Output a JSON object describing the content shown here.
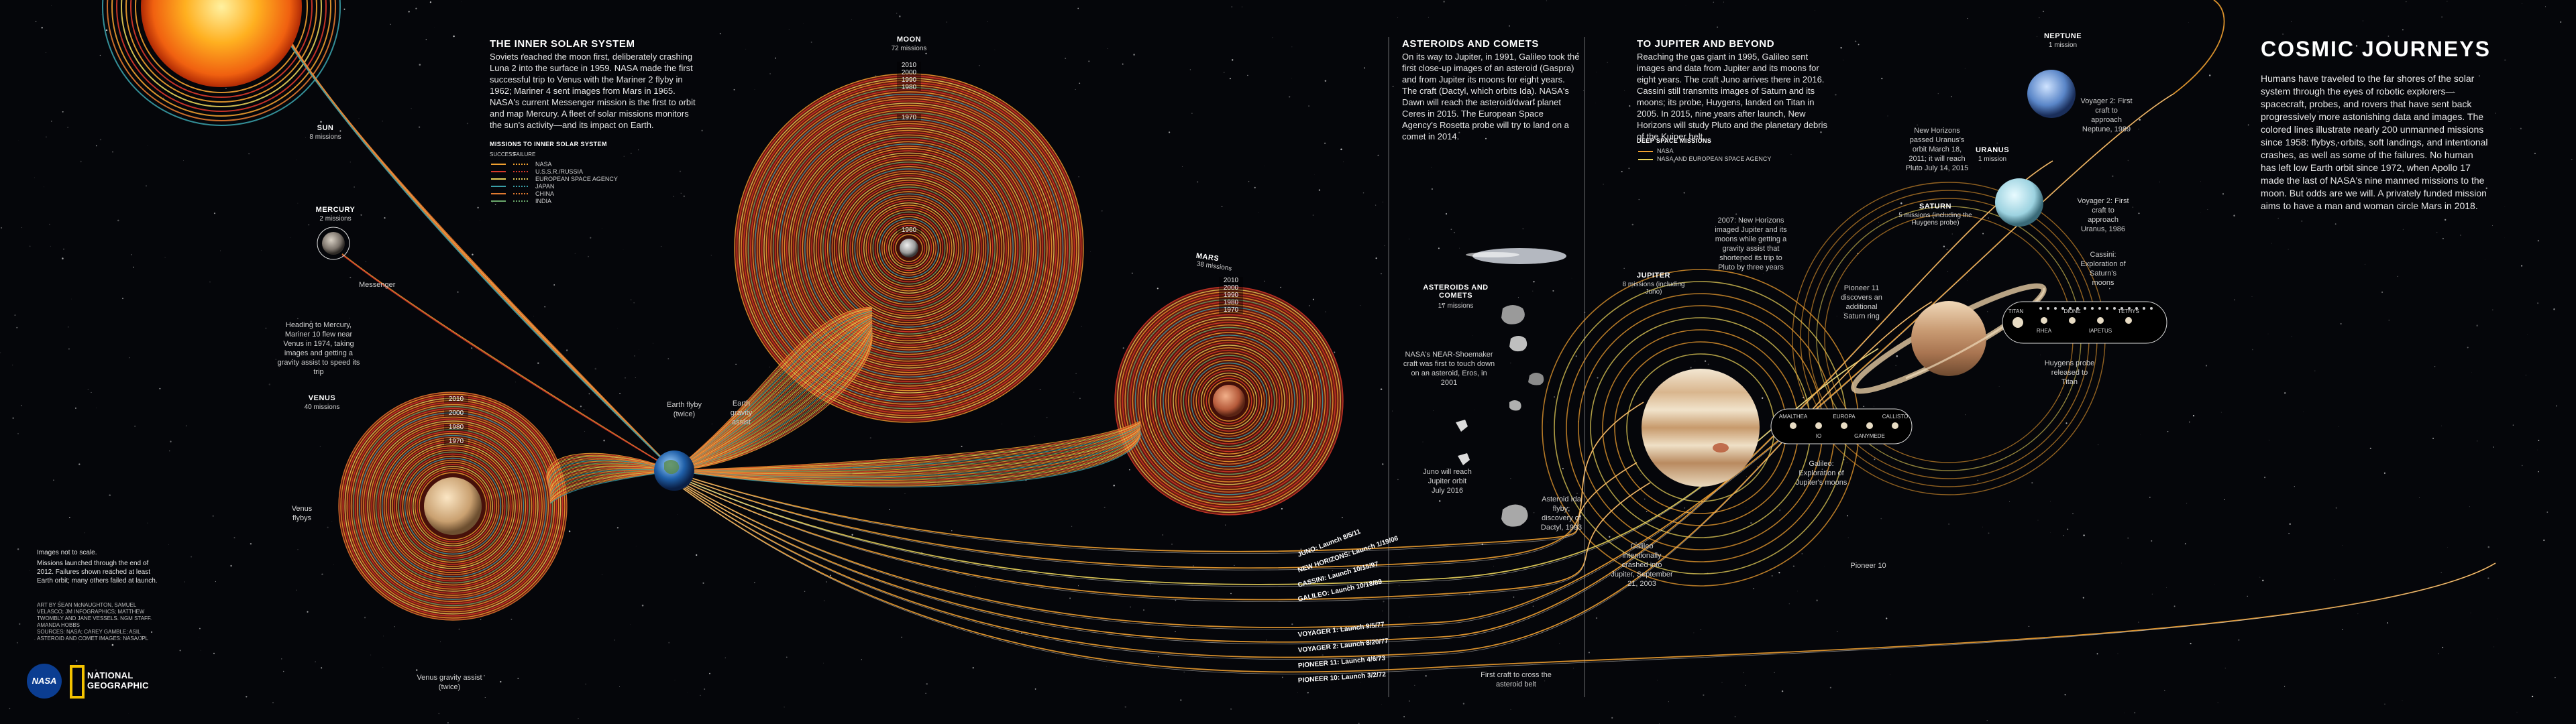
{
  "title": "COSMIC JOURNEYS",
  "intro": "Humans have traveled to the far shores of the solar system through the eyes of robotic explorers—spacecraft, probes, and rovers that have sent back progressively more astonishing data and images. The colored lines illustrate nearly 200 unmanned missions since 1958: flybys, orbits, soft landings, and intentional crashes, as well as some of the failures. No human has left low Earth orbit since 1972, when Apollo 17 made the last of NASA's nine manned missions to the moon. But odds are we will. A privately funded mission aims to have a man and woman circle Mars in 2018.",
  "sections": {
    "inner": {
      "title": "THE INNER SOLAR SYSTEM",
      "body": "Soviets reached the moon first, deliberately crashing Luna 2 into the surface in 1959. NASA made the first successful trip to Venus with the Mariner 2 flyby in 1962; Mariner 4 sent images from Mars in 1965. NASA's current Messenger mission is the first to orbit and map Mercury. A fleet of solar missions monitors the sun's activity—and its impact on Earth."
    },
    "asteroids": {
      "title": "ASTEROIDS AND COMETS",
      "body": "On its way to Jupiter, in 1991, Galileo took the first close-up images of an asteroid (Gaspra) and from Jupiter its moons for eight years. The craft (Dactyl, which orbits Ida). NASA's Dawn will reach the asteroid/dwarf planet Ceres in 2015. The European Space Agency's Rosetta probe will try to land on a comet in 2014."
    },
    "jupiter": {
      "title": "TO JUPITER AND BEYOND",
      "body": "Reaching the gas giant in 1995, Galileo sent images and data from Jupiter and its moons for eight years. The craft Juno arrives there in 2016. Cassini still transmits images of Saturn and its moons; its probe, Huygens, landed on Titan in 2005. In 2015, nine years after launch, New Horizons will study Pluto and the planetary debris of the Kuiper belt."
    }
  },
  "legend_inner": {
    "title": "MISSIONS TO INNER SOLAR SYSTEM",
    "header_success": "SUCCESS",
    "header_failure": "FAILURE",
    "rows": [
      {
        "label": "NASA",
        "color": "#f0a030"
      },
      {
        "label": "U.S.S.R./RUSSIA",
        "color": "#d93a2b"
      },
      {
        "label": "EUROPEAN SPACE AGENCY",
        "color": "#e8d25a"
      },
      {
        "label": "JAPAN",
        "color": "#3aa0a8"
      },
      {
        "label": "CHINA",
        "color": "#e07a30"
      },
      {
        "label": "INDIA",
        "color": "#6aa86b"
      }
    ]
  },
  "legend_deep": {
    "title": "DEEP SPACE MISSIONS",
    "rows": [
      {
        "label": "NASA",
        "color": "#f0a030"
      },
      {
        "label": "NASA AND EUROPEAN SPACE AGENCY",
        "color": "#e8d25a"
      }
    ]
  },
  "bodies": {
    "sun": {
      "name": "SUN",
      "count": "8 missions"
    },
    "mercury": {
      "name": "MERCURY",
      "count": "2 missions"
    },
    "venus": {
      "name": "VENUS",
      "count": "40 missions"
    },
    "moon": {
      "name": "MOON",
      "count": "72 missions"
    },
    "mars": {
      "name": "MARS",
      "count": "38 missions"
    },
    "asteroids": {
      "name": "ASTEROIDS AND COMETS",
      "count": "17 missions"
    },
    "jupiter": {
      "name": "JUPITER",
      "count": "8 missions (including Juno)"
    },
    "saturn": {
      "name": "SATURN",
      "count": "5 missions (including the Huygens probe)"
    },
    "uranus": {
      "name": "URANUS",
      "count": "1 mission"
    },
    "neptune": {
      "name": "NEPTUNE",
      "count": "1 mission"
    }
  },
  "years": {
    "venus": [
      "2010",
      "2000",
      "1980",
      "1970"
    ],
    "moon": [
      "2010",
      "2000",
      "1990",
      "1980",
      "1970",
      "1960"
    ],
    "mars": [
      "2010",
      "2000",
      "1990",
      "1980",
      "1970"
    ]
  },
  "annotations": {
    "messenger": "Messenger",
    "mariner10": "Heading to Mercury, Mariner 10 flew near Venus in 1974, taking images and getting a gravity assist to speed its trip",
    "venus_flybys": "Venus flybys",
    "venus_assist": "Venus gravity assist (twice)",
    "earth_flyby": "Earth flyby (twice)",
    "earth_assist": "Earth gravity assist",
    "near": "NASA's NEAR-Shoemaker craft was first to touch down on an asteroid, Eros, in 2001",
    "juno": "Juno will reach Jupiter orbit July 2016",
    "ida": "Asteroid Ida flyby; discovery of Dactyl, 1993",
    "galileo_crash": "Galileo intentionally crashed into Jupiter, September 21, 2003",
    "belt": "First craft to cross the asteroid belt",
    "nh_jupiter": "2007: New Horizons imaged Jupiter and its moons while getting a gravity assist that shortened its trip to Pluto by three years",
    "nh_uranus": "New Horizons passed Uranus's orbit March 18, 2011; it will reach Pluto July 14, 2015",
    "pioneer11": "Pioneer 11 discovers an additional Saturn ring",
    "galileo_moons": "Galileo: Exploration of Jupiter's moons",
    "huygens": "Huygens probe released to Titan",
    "cassini": "Cassini: Exploration of Saturn's moons",
    "voyager2_uranus": "Voyager 2: First craft to approach Uranus, 1986",
    "voyager2_neptune": "Voyager 2: First craft to approach Neptune, 1989",
    "pioneer10": "Pioneer 10"
  },
  "moons_jupiter": [
    "AMALTHEA",
    "IO",
    "EUROPA",
    "GANYMEDE",
    "CALLISTO"
  ],
  "moons_saturn": [
    "TITAN",
    "RHEA",
    "DIONE",
    "IAPETUS",
    "TETHYS"
  ],
  "missions": [
    "JUNO: Launch 8/5/11",
    "NEW HORIZONS: Launch 1/19/06",
    "CASSINI: Launch 10/15/97",
    "GALILEO: Launch 10/18/89",
    "VOYAGER 1: Launch 9/5/77",
    "VOYAGER 2: Launch 8/20/77",
    "PIONEER 11: Launch 4/6/73",
    "PIONEER 10: Launch 3/2/72"
  ],
  "footnotes": {
    "scale": "Images not to scale.",
    "note": "Missions launched through the end of 2012. Failures shown reached at least Earth orbit; many others failed at launch.",
    "credits": "ART BY SEAN McNAUGHTON, SAMUEL VELASCO; JM INFOGRAPHICS; MATTHEW TWOMBLY AND JANE VESSELS. NGM STAFF. AMANDA HOBBS",
    "sources": "SOURCES: NASA; CAREY GAMBLE; ASIL ASTEROID AND COMET IMAGES: NASA/JPL"
  },
  "logos": {
    "nasa": "NASA",
    "ng": "NATIONAL GEOGRAPHIC"
  },
  "colors": {
    "nasa": "#f0a030",
    "ussr": "#d93a2b",
    "esa": "#e8d25a",
    "japan": "#3aa0a8",
    "china": "#e07a30",
    "india": "#6aa86b",
    "background": "#05060a"
  }
}
